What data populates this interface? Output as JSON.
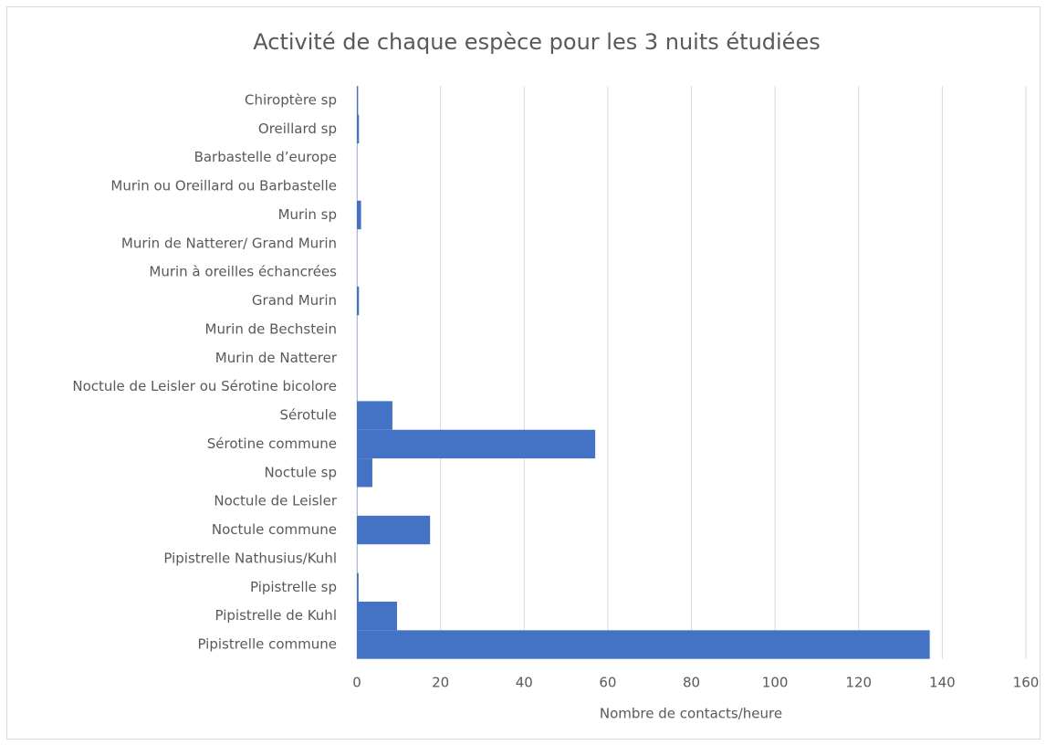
{
  "chart_data": {
    "type": "barh",
    "title": "Activité de chaque espèce pour les 3 nuits étudiées",
    "x_label": "Nombre de contacts/heure",
    "categories": [
      "Chiroptère sp",
      "Oreillard sp",
      "Barbastelle d’europe",
      "Murin ou Oreillard ou Barbastelle",
      "Murin sp",
      "Murin de Natterer/ Grand Murin",
      "Murin à oreilles échancrées",
      "Grand Murin",
      "Murin de Bechstein",
      "Murin de Natterer",
      "Noctule de Leisler ou Sérotine bicolore",
      "Sérotule",
      "Sérotine commune",
      "Noctule sp",
      "Noctule de Leisler",
      "Noctule commune",
      "Pipistrelle Nathusius/Kuhl",
      "Pipistrelle sp",
      "Pipistrelle de Kuhl",
      "Pipistrelle commune"
    ],
    "values": [
      0.3,
      0.5,
      0.1,
      0.1,
      1,
      0.1,
      0.1,
      0.5,
      0.1,
      0.1,
      0.1,
      8.5,
      57,
      3.7,
      0.1,
      17.5,
      0.1,
      0.4,
      9.6,
      137
    ],
    "color": "#4472c4",
    "xlim": [
      0,
      160
    ],
    "xticks": [
      0,
      20,
      40,
      60,
      80,
      100,
      120,
      140,
      160
    ],
    "grid": true
  }
}
